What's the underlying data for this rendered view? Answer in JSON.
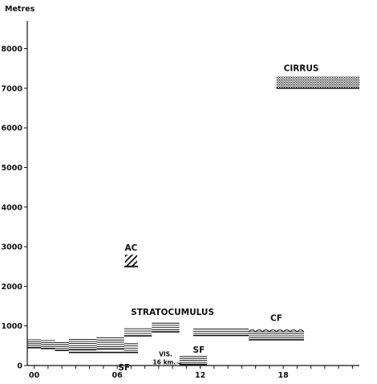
{
  "chart_data": {
    "type": "cloud-layer-time-height",
    "title": "",
    "xlabel": "",
    "ylabel": "Metres",
    "xlim": [
      -0.5,
      23.5
    ],
    "ylim": [
      0,
      8700
    ],
    "x_ticks": [
      0,
      1,
      2,
      3,
      4,
      5,
      6,
      7,
      8,
      9,
      10,
      11,
      12,
      13,
      14,
      15,
      16,
      17,
      18,
      19,
      20,
      21,
      22,
      23
    ],
    "x_tick_labels": [
      {
        "x": 0,
        "label": "00"
      },
      {
        "x": 6,
        "label": "06"
      },
      {
        "x": 12,
        "label": "12"
      },
      {
        "x": 18,
        "label": "18"
      }
    ],
    "y_ticks": [
      0,
      1000,
      2000,
      3000,
      4000,
      5000,
      6000,
      7000,
      8000
    ],
    "y_tick_labels": [
      "0",
      "1000",
      "2000",
      "3000",
      "4000",
      "5000",
      "6000",
      "7000",
      "8000"
    ],
    "grid": false,
    "legend": "none",
    "layers": [
      {
        "cloud": "Stratocumulus",
        "pattern": "lines",
        "x": [
          -0.5,
          0.5
        ],
        "base": 450,
        "top": 650
      },
      {
        "cloud": "Stratocumulus",
        "pattern": "lines",
        "x": [
          0.5,
          1.5
        ],
        "base": 430,
        "top": 630
      },
      {
        "cloud": "Stratocumulus",
        "pattern": "lines",
        "x": [
          1.5,
          2.5
        ],
        "base": 380,
        "top": 580
      },
      {
        "cloud": "Stratocumulus",
        "pattern": "lines",
        "x": [
          2.5,
          4.5
        ],
        "base": 400,
        "top": 660
      },
      {
        "cloud": "Stratocumulus",
        "pattern": "lines",
        "x": [
          4.5,
          6.5
        ],
        "base": 420,
        "top": 700
      },
      {
        "cloud": "Stratocumulus",
        "pattern": "lines",
        "x": [
          6.5,
          7.5
        ],
        "base": 330,
        "top": 550
      },
      {
        "cloud": "Stratocumulus",
        "pattern": "lines",
        "x": [
          6.5,
          8.5
        ],
        "base": 750,
        "top": 930
      },
      {
        "cloud": "Stratocumulus",
        "pattern": "lines",
        "x": [
          8.5,
          10.5
        ],
        "base": 850,
        "top": 1070
      },
      {
        "cloud": "Stratocumulus",
        "pattern": "lines",
        "x": [
          11.5,
          15.5
        ],
        "base": 760,
        "top": 920
      },
      {
        "cloud": "Stratocumulus",
        "pattern": "lines",
        "x": [
          15.5,
          19.5
        ],
        "base": 650,
        "top": 850
      },
      {
        "cloud": "Stratocumulus",
        "pattern": "lines",
        "x": [
          2.5,
          6.5
        ],
        "base": 330,
        "top": 330
      },
      {
        "cloud": "Altocumulus",
        "pattern": "hatch",
        "x": [
          6.5,
          7.5
        ],
        "base": 2500,
        "top": 2800
      },
      {
        "cloud": "Cirrus",
        "pattern": "stipple",
        "x": [
          17.5,
          23.5
        ],
        "base": 7000,
        "top": 7300
      },
      {
        "cloud": "Stratus fractus",
        "pattern": "lines",
        "x": [
          10.5,
          12.5
        ],
        "base": 30,
        "top": 230
      }
    ],
    "annotations": [
      {
        "text": "CIRRUS",
        "x": 19.3,
        "y": 7430
      },
      {
        "text": "AC",
        "x": 7,
        "y": 2900
      },
      {
        "text": "STRATOCUMULUS",
        "x": 10,
        "y": 1280
      },
      {
        "text": "CF",
        "x": 17.5,
        "y": 1130
      },
      {
        "text": "SF",
        "x": 6.5,
        "y": -120
      },
      {
        "text": "VIS.",
        "x": 9.5,
        "y": 230
      },
      {
        "text": "16 km.",
        "x": 9.4,
        "y": 30
      },
      {
        "text": "SF",
        "x": 11.9,
        "y": 320
      }
    ]
  }
}
